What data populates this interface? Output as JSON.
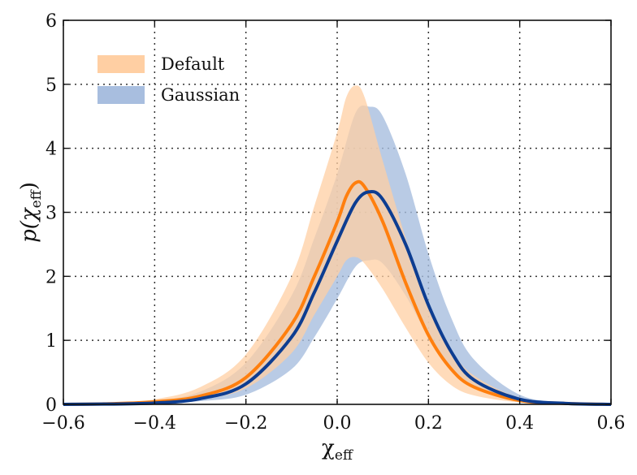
{
  "chart_data": {
    "type": "line",
    "title": "",
    "xlabel": "χ",
    "xlabel_sub": "eff",
    "ylabel": "p(χ",
    "ylabel_sub": "eff",
    "ylabel_close": ")",
    "xlim": [
      -0.6,
      0.6
    ],
    "ylim": [
      0,
      6
    ],
    "xticks": [
      -0.6,
      -0.4,
      -0.2,
      0.0,
      0.2,
      0.4,
      0.6
    ],
    "xtick_labels": [
      "−0.6",
      "−0.4",
      "−0.2",
      "0.0",
      "0.2",
      "0.4",
      "0.6"
    ],
    "yticks": [
      0,
      1,
      2,
      3,
      4,
      5,
      6
    ],
    "ytick_labels": [
      "0",
      "1",
      "2",
      "3",
      "4",
      "5",
      "6"
    ],
    "grid": true,
    "legend_position": "top-left",
    "series": [
      {
        "name": "Default",
        "color": "#ff7f0e",
        "band_color": "#ffcfa3",
        "x": [
          -0.6,
          -0.5,
          -0.4,
          -0.3,
          -0.2,
          -0.1,
          -0.05,
          0.0,
          0.02,
          0.04,
          0.06,
          0.1,
          0.15,
          0.2,
          0.25,
          0.3,
          0.4,
          0.5,
          0.6
        ],
        "median": [
          0.0,
          0.01,
          0.04,
          0.13,
          0.42,
          1.25,
          2.0,
          2.85,
          3.25,
          3.46,
          3.4,
          2.85,
          1.9,
          1.08,
          0.55,
          0.27,
          0.06,
          0.015,
          0.0
        ],
        "lower": [
          0.0,
          0.005,
          0.02,
          0.08,
          0.25,
          0.8,
          1.4,
          2.0,
          2.25,
          2.3,
          2.2,
          1.8,
          1.2,
          0.65,
          0.3,
          0.14,
          0.03,
          0.007,
          0.0
        ],
        "upper": [
          0.0,
          0.02,
          0.08,
          0.27,
          0.78,
          2.0,
          3.1,
          4.25,
          4.8,
          4.98,
          4.8,
          3.8,
          2.6,
          1.55,
          0.85,
          0.45,
          0.1,
          0.03,
          0.01
        ]
      },
      {
        "name": "Gaussian",
        "color": "#0d3d91",
        "band_color": "#a8bedf",
        "x": [
          -0.6,
          -0.5,
          -0.4,
          -0.3,
          -0.2,
          -0.1,
          -0.05,
          0.0,
          0.04,
          0.07,
          0.1,
          0.15,
          0.2,
          0.25,
          0.3,
          0.4,
          0.5,
          0.6
        ],
        "median": [
          0.0,
          0.005,
          0.02,
          0.09,
          0.32,
          1.05,
          1.75,
          2.55,
          3.15,
          3.32,
          3.2,
          2.5,
          1.55,
          0.82,
          0.38,
          0.08,
          0.015,
          0.0
        ],
        "lower": [
          0.0,
          0.002,
          0.01,
          0.05,
          0.15,
          0.55,
          1.05,
          1.65,
          2.15,
          2.25,
          2.2,
          1.7,
          1.05,
          0.55,
          0.25,
          0.05,
          0.01,
          0.0
        ],
        "upper": [
          0.0,
          0.01,
          0.05,
          0.2,
          0.65,
          1.7,
          2.6,
          3.6,
          4.55,
          4.65,
          4.5,
          3.6,
          2.35,
          1.35,
          0.7,
          0.15,
          0.03,
          0.005
        ]
      }
    ]
  }
}
